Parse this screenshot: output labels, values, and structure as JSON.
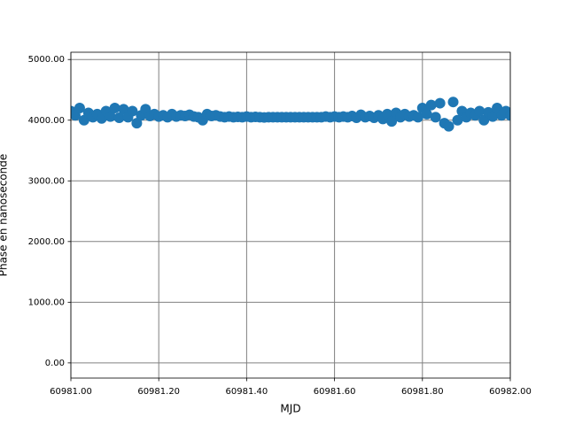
{
  "chart_data": {
    "type": "scatter",
    "xlabel": "MJD",
    "ylabel": "Phase en nanoseconde",
    "xlim": [
      60981,
      60982
    ],
    "ylim": [
      -250,
      5120
    ],
    "xticks": [
      {
        "value": 60981,
        "label": "60981.00"
      },
      {
        "value": 60981.2,
        "label": "60981.20"
      },
      {
        "value": 60981.4,
        "label": "60981.40"
      },
      {
        "value": 60981.6,
        "label": "60981.60"
      },
      {
        "value": 60981.8,
        "label": "60981.80"
      },
      {
        "value": 60982,
        "label": "60982.00"
      }
    ],
    "yticks": [
      {
        "value": 0,
        "label": "0.00"
      },
      {
        "value": 1000,
        "label": "1000.00"
      },
      {
        "value": 2000,
        "label": "2000.00"
      },
      {
        "value": 3000,
        "label": "3000.00"
      },
      {
        "value": 4000,
        "label": "4000.00"
      },
      {
        "value": 5000,
        "label": "5000.00"
      }
    ],
    "grid": true,
    "color": "#1f77b4",
    "x": [
      60981.0,
      60981.01,
      60981.02,
      60981.03,
      60981.04,
      60981.05,
      60981.06,
      60981.07,
      60981.08,
      60981.09,
      60981.1,
      60981.11,
      60981.12,
      60981.13,
      60981.14,
      60981.15,
      60981.16,
      60981.17,
      60981.18,
      60981.19,
      60981.2,
      60981.21,
      60981.22,
      60981.23,
      60981.24,
      60981.25,
      60981.26,
      60981.27,
      60981.28,
      60981.29,
      60981.3,
      60981.31,
      60981.32,
      60981.33,
      60981.34,
      60981.35,
      60981.36,
      60981.37,
      60981.38,
      60981.39,
      60981.4,
      60981.41,
      60981.42,
      60981.43,
      60981.44,
      60981.45,
      60981.46,
      60981.47,
      60981.48,
      60981.49,
      60981.5,
      60981.51,
      60981.52,
      60981.53,
      60981.54,
      60981.55,
      60981.56,
      60981.57,
      60981.58,
      60981.59,
      60981.6,
      60981.61,
      60981.62,
      60981.63,
      60981.64,
      60981.65,
      60981.66,
      60981.67,
      60981.68,
      60981.69,
      60981.7,
      60981.71,
      60981.72,
      60981.73,
      60981.74,
      60981.75,
      60981.76,
      60981.77,
      60981.78,
      60981.79,
      60981.8,
      60981.81,
      60981.82,
      60981.83,
      60981.84,
      60981.85,
      60981.86,
      60981.87,
      60981.88,
      60981.89,
      60981.9,
      60981.91,
      60981.92,
      60981.93,
      60981.94,
      60981.95,
      60981.96,
      60981.97,
      60981.98,
      60981.99,
      60982.0
    ],
    "values": [
      4150,
      4080,
      4200,
      4000,
      4120,
      4050,
      4100,
      4030,
      4150,
      4060,
      4200,
      4040,
      4180,
      4050,
      4150,
      3950,
      4080,
      4180,
      4070,
      4100,
      4060,
      4080,
      4050,
      4100,
      4060,
      4080,
      4070,
      4090,
      4060,
      4050,
      4000,
      4100,
      4070,
      4080,
      4060,
      4050,
      4060,
      4050,
      4055,
      4050,
      4060,
      4050,
      4055,
      4050,
      4045,
      4050,
      4050,
      4050,
      4050,
      4050,
      4050,
      4050,
      4050,
      4050,
      4050,
      4050,
      4050,
      4050,
      4060,
      4050,
      4060,
      4050,
      4060,
      4050,
      4070,
      4040,
      4090,
      4050,
      4070,
      4040,
      4080,
      4020,
      4100,
      3980,
      4120,
      4050,
      4100,
      4060,
      4080,
      4050,
      4200,
      4100,
      4250,
      4050,
      4280,
      3950,
      3900,
      4300,
      4000,
      4150,
      4050,
      4120,
      4080,
      4150,
      4000,
      4130,
      4060,
      4200,
      4080,
      4150,
      4080
    ]
  }
}
